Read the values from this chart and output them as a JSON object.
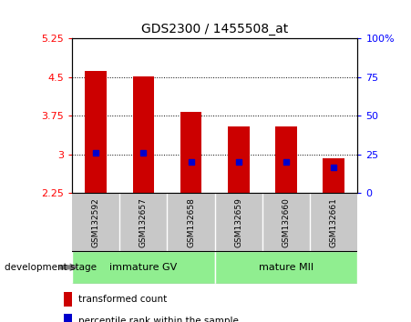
{
  "title": "GDS2300 / 1455508_at",
  "categories": [
    "GSM132592",
    "GSM132657",
    "GSM132658",
    "GSM132659",
    "GSM132660",
    "GSM132661"
  ],
  "bar_values": [
    4.62,
    4.52,
    3.82,
    3.55,
    3.55,
    2.92
  ],
  "bar_bottom": 2.25,
  "percentile_values": [
    26,
    26,
    20,
    20,
    20,
    17
  ],
  "ylim_left": [
    2.25,
    5.25
  ],
  "ylim_right": [
    0,
    100
  ],
  "yticks_left": [
    2.25,
    3.0,
    3.75,
    4.5,
    5.25
  ],
  "yticks_right": [
    0,
    25,
    50,
    75,
    100
  ],
  "ytick_labels_left": [
    "2.25",
    "3",
    "3.75",
    "4.5",
    "5.25"
  ],
  "ytick_labels_right": [
    "0",
    "25",
    "50",
    "75",
    "100%"
  ],
  "bar_color": "#CC0000",
  "percentile_color": "#0000CC",
  "group1_label": "immature GV",
  "group2_label": "mature MII",
  "group1_indices": [
    0,
    1,
    2
  ],
  "group2_indices": [
    3,
    4,
    5
  ],
  "group_bg_color": "#90EE90",
  "category_bg_color": "#C8C8C8",
  "legend_bar_label": "transformed count",
  "legend_pct_label": "percentile rank within the sample",
  "dev_stage_label": "development stage",
  "plot_bg": "#FFFFFF",
  "grid_yticks": [
    3.0,
    3.75,
    4.5
  ],
  "bar_width": 0.45
}
